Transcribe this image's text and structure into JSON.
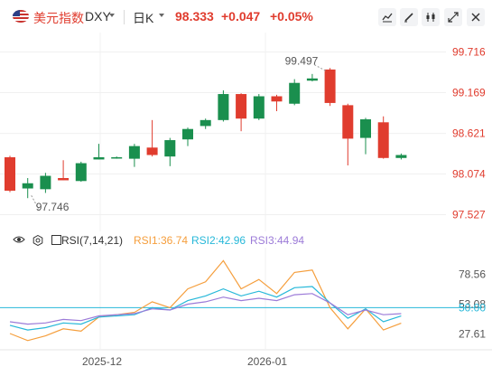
{
  "header": {
    "name": "美元指数",
    "code": "DXY",
    "period": "日K",
    "price": "98.333",
    "change": "+0.047",
    "change_pct": "+0.05%",
    "up_color": "#e03c2e",
    "down_color": "#1a8f4e"
  },
  "toolbar": {
    "icons": [
      "line-chart-icon",
      "draw-icon",
      "settings-icon",
      "expand-icon",
      "close-icon"
    ]
  },
  "chart_data": [
    {
      "type": "candlestick",
      "title": "",
      "x_ticks": [
        "2025-12",
        "2026-01"
      ],
      "y_ticks": [
        "99.716",
        "99.169",
        "98.621",
        "98.074",
        "97.527"
      ],
      "ylim": [
        97.4,
        99.88
      ],
      "annotations": {
        "high": "99.497",
        "low": "97.746"
      },
      "candles": [
        {
          "o": 98.3,
          "c": 97.85,
          "h": 98.32,
          "l": 97.83
        },
        {
          "o": 97.88,
          "c": 97.95,
          "h": 98.02,
          "l": 97.75
        },
        {
          "o": 97.87,
          "c": 98.05,
          "h": 98.09,
          "l": 97.82
        },
        {
          "o": 98.02,
          "c": 97.99,
          "h": 98.26,
          "l": 97.99
        },
        {
          "o": 97.98,
          "c": 98.22,
          "h": 98.24,
          "l": 97.97
        },
        {
          "o": 98.27,
          "c": 98.3,
          "h": 98.48,
          "l": 98.27
        },
        {
          "o": 98.29,
          "c": 98.3,
          "h": 98.31,
          "l": 98.28
        },
        {
          "o": 98.28,
          "c": 98.45,
          "h": 98.48,
          "l": 98.17
        },
        {
          "o": 98.43,
          "c": 98.33,
          "h": 98.8,
          "l": 98.31
        },
        {
          "o": 98.31,
          "c": 98.53,
          "h": 98.56,
          "l": 98.18
        },
        {
          "o": 98.54,
          "c": 98.68,
          "h": 98.7,
          "l": 98.45
        },
        {
          "o": 98.72,
          "c": 98.8,
          "h": 98.82,
          "l": 98.68
        },
        {
          "o": 98.8,
          "c": 99.15,
          "h": 99.2,
          "l": 98.78
        },
        {
          "o": 99.15,
          "c": 98.82,
          "h": 99.16,
          "l": 98.65
        },
        {
          "o": 98.82,
          "c": 99.12,
          "h": 99.15,
          "l": 98.8
        },
        {
          "o": 99.12,
          "c": 99.05,
          "h": 99.14,
          "l": 98.92
        },
        {
          "o": 99.02,
          "c": 99.3,
          "h": 99.35,
          "l": 99.0
        },
        {
          "o": 99.33,
          "c": 99.36,
          "h": 99.42,
          "l": 99.32
        },
        {
          "o": 99.48,
          "c": 99.03,
          "h": 99.5,
          "l": 98.99
        },
        {
          "o": 99.0,
          "c": 98.55,
          "h": 99.02,
          "l": 98.19
        },
        {
          "o": 98.56,
          "c": 98.81,
          "h": 98.83,
          "l": 98.34
        },
        {
          "o": 98.77,
          "c": 98.29,
          "h": 98.85,
          "l": 98.28
        },
        {
          "o": 98.29,
          "c": 98.33,
          "h": 98.35,
          "l": 98.27
        }
      ]
    },
    {
      "type": "line",
      "title": "RSI(7,14,21)",
      "ylim": [
        18,
        98
      ],
      "y_ticks": [
        "78.56",
        "53.08",
        "50.00",
        "27.61"
      ],
      "ref_level": 50.0,
      "series": [
        {
          "name": "RSI1",
          "label": "RSI1:36.74",
          "color": "#f59e3c",
          "values": [
            28,
            22,
            26,
            32,
            30,
            42,
            44,
            46,
            55,
            50,
            66,
            72,
            90,
            66,
            74,
            62,
            80,
            82,
            50,
            32,
            49,
            31,
            36.74
          ]
        },
        {
          "name": "RSI2",
          "label": "RSI2:42.96",
          "color": "#27b8d9",
          "values": [
            35,
            31,
            33,
            37,
            36,
            42,
            43,
            44,
            50,
            48,
            56,
            60,
            66,
            60,
            64,
            59,
            67,
            68,
            54,
            41,
            49,
            38,
            42.96
          ]
        },
        {
          "name": "RSI3",
          "label": "RSI3:44.94",
          "color": "#9c7bd8",
          "values": [
            38,
            36,
            37,
            40,
            39,
            43,
            44,
            45,
            49,
            48,
            53,
            55,
            59,
            56,
            58,
            56,
            61,
            62,
            54,
            44,
            48,
            44,
            44.94
          ]
        }
      ]
    }
  ]
}
